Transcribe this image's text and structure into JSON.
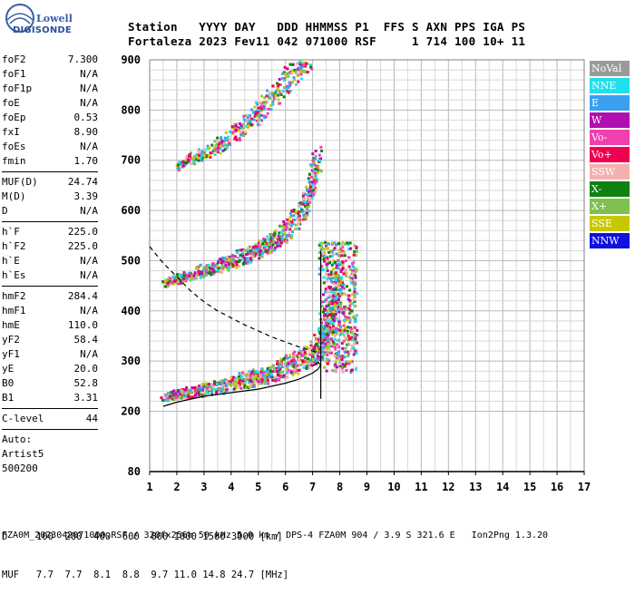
{
  "logo": {
    "brand_top": "Lowell",
    "brand_bottom": "DIGISONDE"
  },
  "header": {
    "line1": "Station   YYYY DAY   DDD HHMMSS P1  FFS S AXN PPS IGA PS",
    "line2": "Fortaleza 2023 Fev11 042 071000 RSF     1 714 100 10+ 11"
  },
  "params": [
    {
      "label": "foF2",
      "value": "7.300"
    },
    {
      "label": "foF1",
      "value": "N/A"
    },
    {
      "label": "foF1p",
      "value": "N/A"
    },
    {
      "label": "foE",
      "value": "N/A"
    },
    {
      "label": "foEp",
      "value": "0.53"
    },
    {
      "label": "fxI",
      "value": "8.90"
    },
    {
      "label": "foEs",
      "value": "N/A"
    },
    {
      "label": "fmin",
      "value": "1.70"
    },
    {
      "sep": true
    },
    {
      "label": "MUF(D)",
      "value": "24.74"
    },
    {
      "label": "M(D)",
      "value": "3.39"
    },
    {
      "label": "D",
      "value": "N/A"
    },
    {
      "sep": true
    },
    {
      "label": "h`F",
      "value": "225.0"
    },
    {
      "label": "h`F2",
      "value": "225.0"
    },
    {
      "label": "h`E",
      "value": "N/A"
    },
    {
      "label": "h`Es",
      "value": "N/A"
    },
    {
      "sep": true
    },
    {
      "label": "hmF2",
      "value": "284.4"
    },
    {
      "label": "hmF1",
      "value": "N/A"
    },
    {
      "label": "hmE",
      "value": "110.0"
    },
    {
      "label": "yF2",
      "value": "58.4"
    },
    {
      "label": "yF1",
      "value": "N/A"
    },
    {
      "label": "yE",
      "value": "20.0"
    },
    {
      "label": "B0",
      "value": "52.8"
    },
    {
      "label": "B1",
      "value": "3.31"
    },
    {
      "sep": true
    },
    {
      "label": "C-level",
      "value": "44"
    },
    {
      "sep": true
    },
    {
      "label": "Auto:",
      "value": ""
    },
    {
      "label": "Artist5",
      "value": ""
    },
    {
      "label": "500200",
      "value": ""
    }
  ],
  "legend": [
    {
      "label": "NoVal",
      "color": "#9a9a9a"
    },
    {
      "label": "NNE",
      "color": "#1ee0f0"
    },
    {
      "label": "E",
      "color": "#3aa0f0"
    },
    {
      "label": "W",
      "color": "#b010b0"
    },
    {
      "label": "Vo-",
      "color": "#f040b0"
    },
    {
      "label": "Vo+",
      "color": "#f00050"
    },
    {
      "label": "SSW",
      "color": "#f4b0b0"
    },
    {
      "label": "X-",
      "color": "#108010"
    },
    {
      "label": "X+",
      "color": "#80c050"
    },
    {
      "label": "SSE",
      "color": "#c8c800"
    },
    {
      "label": "NNW",
      "color": "#1010e0"
    }
  ],
  "footer": {
    "line1": "D     100  200  400  600  800 1000 1500 3000 [km]",
    "line2": "MUF   7.7  7.7  8.1  8.8  9.7 11.0 14.8 24.7 [MHz]"
  },
  "status": "FZA0M_2023042071000.RSF / 320fx256h 50 kHz 5.0 km / DPS-4 FZA0M 904 / 3.9 S 321.6 E   Ion2Png 1.3.20",
  "chart_data": {
    "type": "scatter",
    "x_ticks": [
      "1",
      "2",
      "3",
      "4",
      "5",
      "6",
      "7",
      "8",
      "9",
      "10",
      "11",
      "12",
      "13",
      "14",
      "15",
      "16",
      "17"
    ],
    "y_ticks": [
      "80",
      "200",
      "300",
      "400",
      "500",
      "600",
      "700",
      "800",
      "900"
    ],
    "xlim": [
      1,
      17
    ],
    "ylim": [
      80,
      900
    ],
    "grid": true,
    "legend_placement": "right",
    "series": [
      {
        "name": "O-trace (1st hop)",
        "points": [
          [
            1.5,
            228
          ],
          [
            2.0,
            232
          ],
          [
            2.5,
            236
          ],
          [
            3.0,
            240
          ],
          [
            3.5,
            245
          ],
          [
            4.0,
            252
          ],
          [
            4.5,
            258
          ],
          [
            5.0,
            264
          ],
          [
            5.5,
            272
          ],
          [
            6.0,
            282
          ],
          [
            6.5,
            295
          ],
          [
            7.0,
            310
          ],
          [
            7.3,
            330
          ],
          [
            7.6,
            370
          ],
          [
            7.8,
            420
          ],
          [
            8.0,
            480
          ]
        ]
      },
      {
        "name": "2nd hop",
        "points": [
          [
            1.5,
            455
          ],
          [
            2.0,
            462
          ],
          [
            2.5,
            470
          ],
          [
            3.0,
            478
          ],
          [
            3.5,
            486
          ],
          [
            4.0,
            496
          ],
          [
            4.5,
            506
          ],
          [
            5.0,
            518
          ],
          [
            5.5,
            532
          ],
          [
            6.0,
            552
          ],
          [
            6.5,
            585
          ],
          [
            6.8,
            620
          ],
          [
            7.0,
            660
          ],
          [
            7.2,
            700
          ]
        ]
      },
      {
        "name": "3rd hop",
        "points": [
          [
            1.9,
            685
          ],
          [
            2.5,
            700
          ],
          [
            3.0,
            712
          ],
          [
            3.5,
            725
          ],
          [
            4.0,
            742
          ],
          [
            4.5,
            765
          ],
          [
            5.0,
            790
          ],
          [
            5.5,
            820
          ],
          [
            6.0,
            850
          ],
          [
            6.5,
            885
          ],
          [
            6.8,
            900
          ]
        ]
      },
      {
        "name": "MUF curve",
        "points": [
          [
            1.0,
            528
          ],
          [
            1.5,
            495
          ],
          [
            2.0,
            468
          ],
          [
            2.5,
            440
          ],
          [
            3.0,
            418
          ],
          [
            3.5,
            400
          ],
          [
            4.0,
            386
          ],
          [
            4.5,
            372
          ],
          [
            5.0,
            360
          ],
          [
            5.5,
            348
          ],
          [
            6.0,
            338
          ],
          [
            6.5,
            328
          ],
          [
            7.0,
            320
          ],
          [
            7.2,
            316
          ]
        ]
      },
      {
        "name": "True height profile",
        "points": [
          [
            1.5,
            210
          ],
          [
            2.0,
            218
          ],
          [
            3.0,
            230
          ],
          [
            4.0,
            237
          ],
          [
            5.0,
            244
          ],
          [
            6.0,
            256
          ],
          [
            6.5,
            264
          ],
          [
            7.0,
            276
          ],
          [
            7.2,
            284
          ],
          [
            7.3,
            292
          ],
          [
            7.2,
            298
          ],
          [
            7.0,
            290
          ]
        ]
      },
      {
        "name": "foF2 marker",
        "points": [
          [
            7.3,
            225
          ],
          [
            7.3,
            520
          ]
        ]
      }
    ]
  }
}
